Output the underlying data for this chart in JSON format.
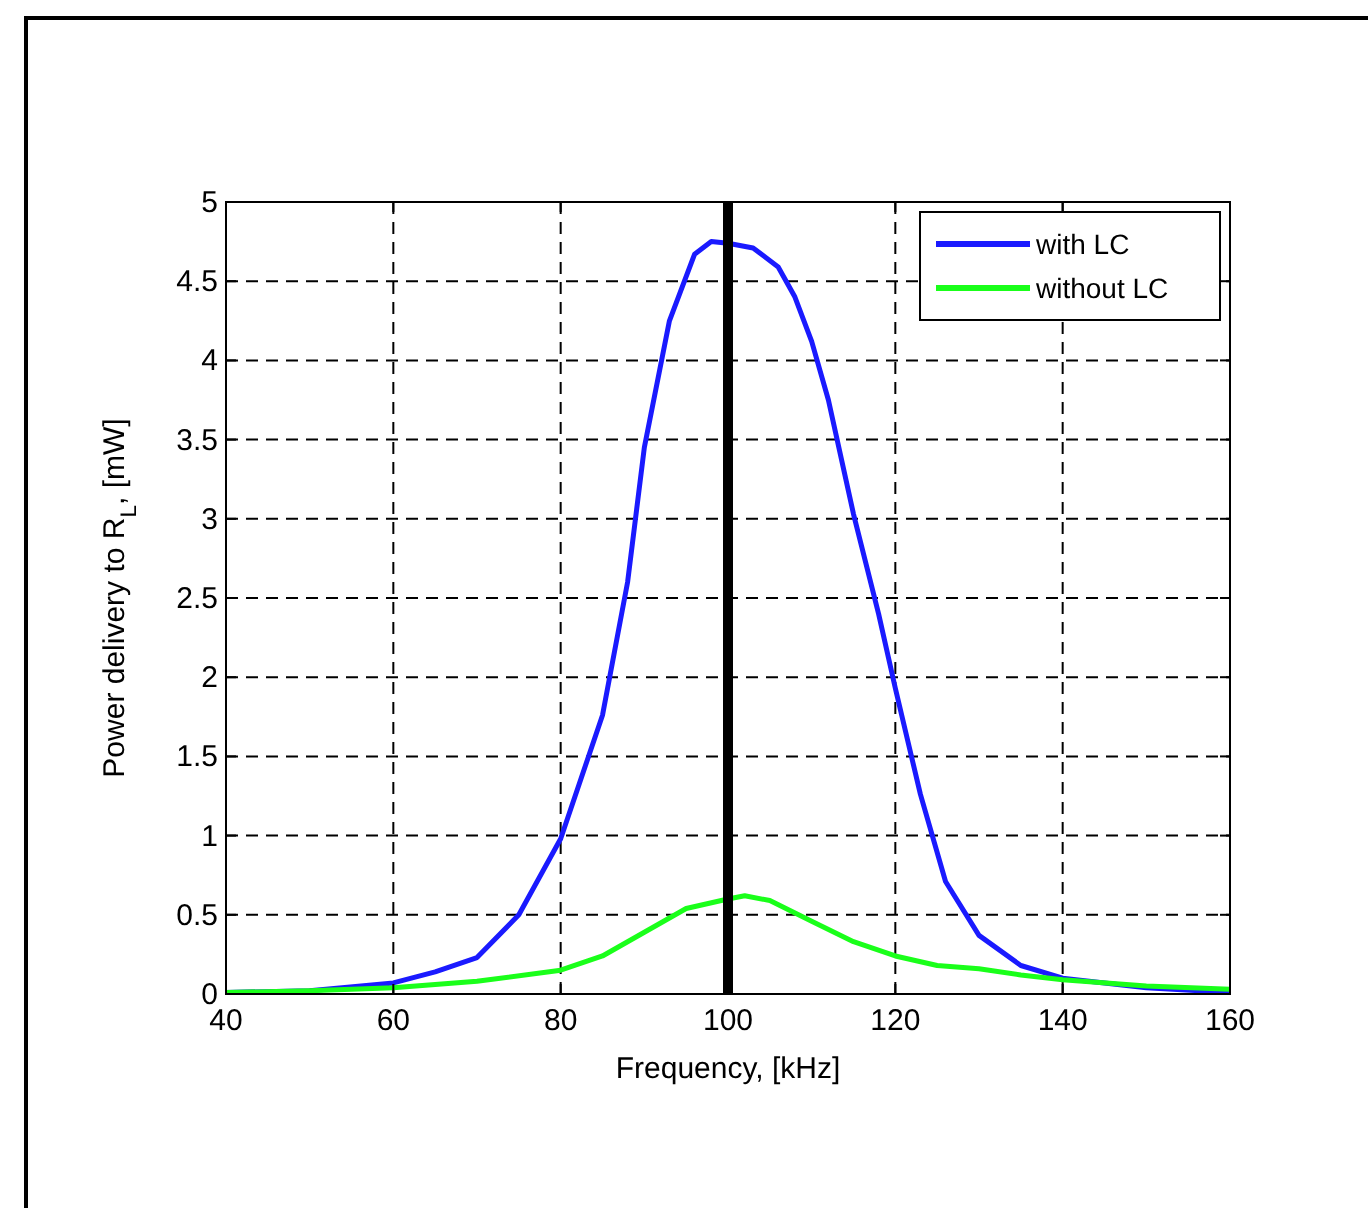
{
  "chart_data": {
    "type": "line",
    "xlabel": "Frequency, [kHz]",
    "ylabel": "Power delivery to R$_{L}$, [mW]",
    "xlim": [
      40,
      160
    ],
    "xticks": [
      40,
      60,
      80,
      100,
      120,
      140,
      160
    ],
    "ylim": [
      0,
      5
    ],
    "yticks": [
      0,
      0.5,
      1,
      1.5,
      2,
      2.5,
      3,
      3.5,
      4,
      4.5,
      5
    ],
    "grid": true,
    "legend": "top right",
    "marker": "none",
    "line_style": "solid",
    "ref_lines": [
      {
        "axis": "x",
        "value": 100,
        "color": "#000000"
      }
    ],
    "series": [
      {
        "name": "with LC",
        "color": "#1a1aff",
        "x": [
          40,
          50,
          60,
          65,
          70,
          75,
          80,
          85,
          88,
          90,
          93,
          96,
          98,
          100,
          103,
          106,
          108,
          110,
          112,
          115,
          118,
          120,
          123,
          126,
          130,
          135,
          140,
          150,
          160
        ],
        "values": [
          0.01,
          0.02,
          0.07,
          0.14,
          0.23,
          0.5,
          0.98,
          1.76,
          2.6,
          3.45,
          4.25,
          4.67,
          4.75,
          4.74,
          4.71,
          4.59,
          4.4,
          4.12,
          3.75,
          3.03,
          2.4,
          1.93,
          1.26,
          0.71,
          0.37,
          0.18,
          0.1,
          0.04,
          0.01
        ]
      },
      {
        "name": "without LC",
        "color": "#1aff1a",
        "x": [
          40,
          50,
          60,
          70,
          80,
          85,
          90,
          95,
          100,
          102,
          105,
          110,
          115,
          120,
          125,
          130,
          135,
          140,
          150,
          160
        ],
        "values": [
          0.01,
          0.02,
          0.04,
          0.08,
          0.15,
          0.24,
          0.39,
          0.54,
          0.6,
          0.62,
          0.59,
          0.46,
          0.33,
          0.24,
          0.18,
          0.16,
          0.12,
          0.09,
          0.05,
          0.03
        ]
      }
    ]
  }
}
